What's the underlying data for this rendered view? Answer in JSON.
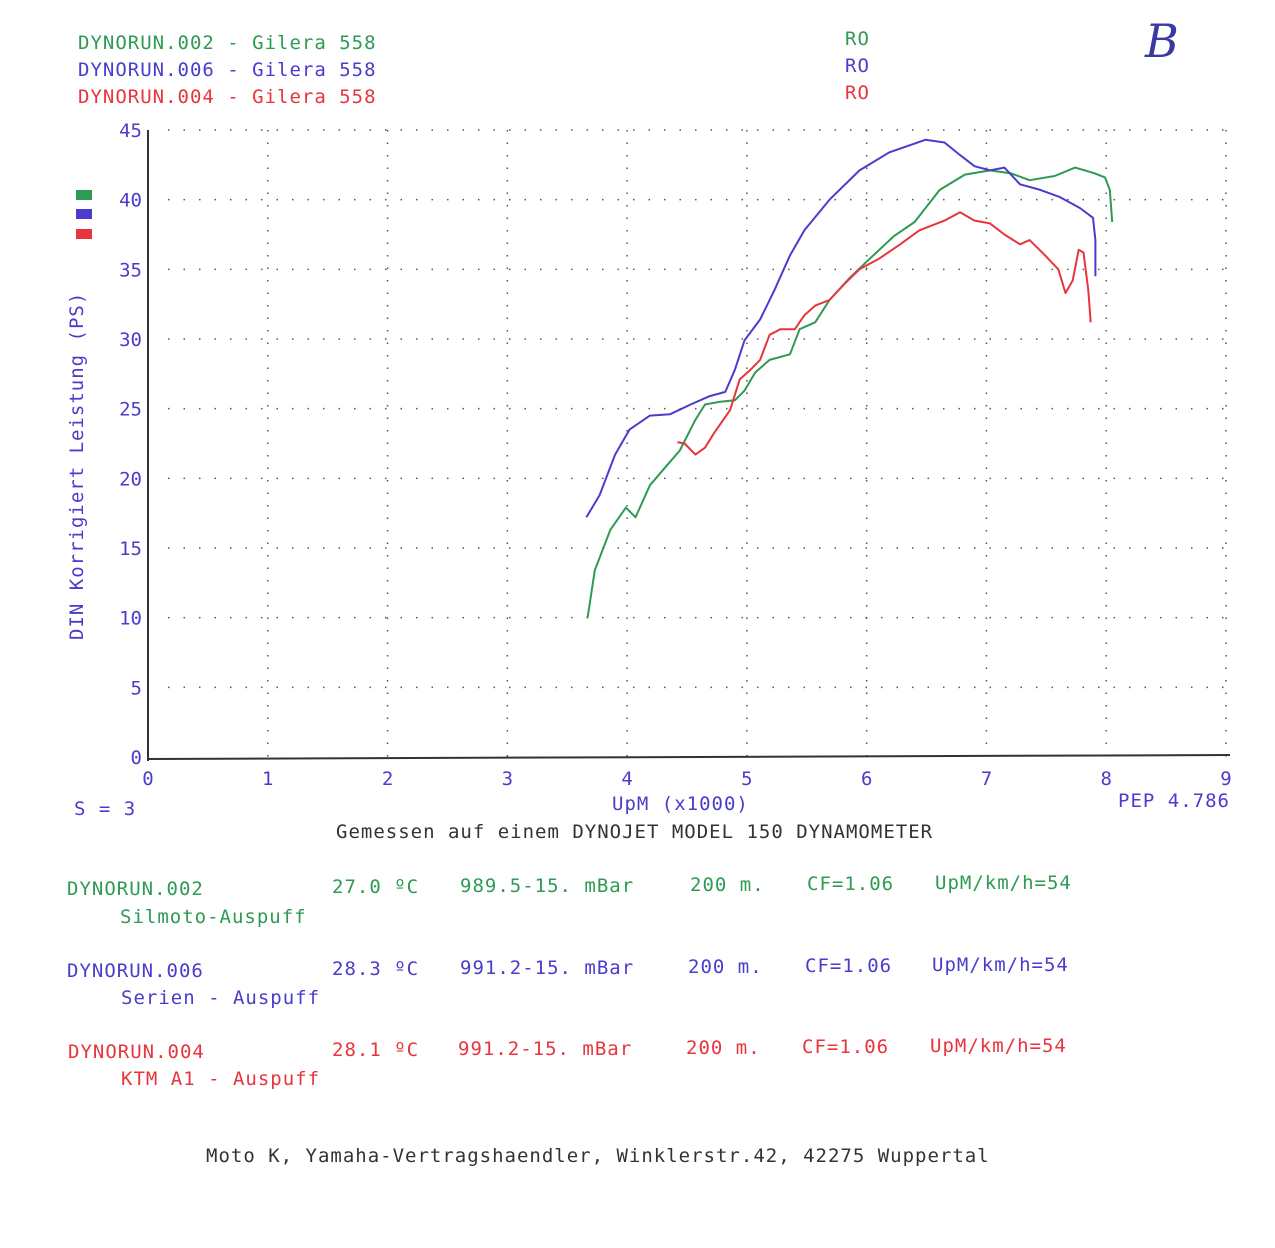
{
  "header": {
    "runs": [
      {
        "label": "DYNORUN.002 - Gilera 558",
        "tag": "RO",
        "color": "#2e9a52"
      },
      {
        "label": "DYNORUN.006 - Gilera 558",
        "tag": "RO",
        "color": "#4a3ccc"
      },
      {
        "label": "DYNORUN.004 - Gilera 558",
        "tag": "RO",
        "color": "#e8343c"
      }
    ],
    "handwritten_mark": "B"
  },
  "smoothing": "S = 3",
  "pep": "PEP 4.786",
  "caption": "Gemessen auf einem DYNOJET MODEL 150 DYNAMOMETER",
  "runs_info": [
    {
      "run": "DYNORUN.002",
      "temp": "27.0 ºC",
      "pressure": "989.5-15. mBar",
      "altitude": "200 m.",
      "cf": "CF=1.06",
      "ratio": "UpM/km/h=54",
      "note": "Silmoto-Auspuff"
    },
    {
      "run": "DYNORUN.006",
      "temp": "28.3 ºC",
      "pressure": "991.2-15. mBar",
      "altitude": "200 m.",
      "cf": "CF=1.06",
      "ratio": "UpM/km/h=54",
      "note": "Serien - Auspuff"
    },
    {
      "run": "DYNORUN.004",
      "temp": "28.1 ºC",
      "pressure": "991.2-15. mBar",
      "altitude": "200 m.",
      "cf": "CF=1.06",
      "ratio": "UpM/km/h=54",
      "note": "KTM A1 - Auspuff"
    }
  ],
  "footer": "Moto K, Yamaha-Vertragshaendler, Winklerstr.42, 42275 Wuppertal",
  "chart_data": {
    "type": "line",
    "title": "",
    "xlabel": "UpM (x1000)",
    "ylabel": "DIN Korrigiert Leistung (PS)",
    "xlim": [
      0,
      9
    ],
    "ylim": [
      0,
      45
    ],
    "xticks": [
      "0",
      "1",
      "2",
      "3",
      "4",
      "5",
      "6",
      "7",
      "8",
      "9"
    ],
    "yticks": [
      "0",
      "5",
      "10",
      "15",
      "20",
      "25",
      "30",
      "35",
      "40",
      "45"
    ],
    "grid": "dotted",
    "legend": "left swatches",
    "series": [
      {
        "name": "DYNORUN.002",
        "color": "#2e9a52",
        "x": [
          3.67,
          3.73,
          3.86,
          3.99,
          4.07,
          4.19,
          4.32,
          4.44,
          4.57,
          4.65,
          4.78,
          4.9,
          4.98,
          5.07,
          5.19,
          5.36,
          5.44,
          5.57,
          5.69,
          5.86,
          6.03,
          6.23,
          6.4,
          6.61,
          6.82,
          7.03,
          7.2,
          7.36,
          7.57,
          7.74,
          7.9,
          7.99,
          8.03,
          8.05
        ],
        "y": [
          10.0,
          13.4,
          16.3,
          17.9,
          17.2,
          19.5,
          20.8,
          22.0,
          24.2,
          25.3,
          25.5,
          25.6,
          26.3,
          27.6,
          28.5,
          28.9,
          30.7,
          31.2,
          32.8,
          34.4,
          35.8,
          37.4,
          38.4,
          40.7,
          41.8,
          42.1,
          41.9,
          41.4,
          41.7,
          42.3,
          41.9,
          41.6,
          40.7,
          38.4
        ]
      },
      {
        "name": "DYNORUN.006",
        "color": "#4a3ccc",
        "x": [
          3.66,
          3.77,
          3.9,
          4.02,
          4.19,
          4.36,
          4.53,
          4.69,
          4.82,
          4.9,
          4.98,
          5.11,
          5.23,
          5.36,
          5.48,
          5.69,
          5.94,
          6.19,
          6.49,
          6.65,
          6.78,
          6.9,
          7.03,
          7.15,
          7.28,
          7.45,
          7.61,
          7.78,
          7.89,
          7.91,
          7.91
        ],
        "y": [
          17.2,
          18.8,
          21.7,
          23.5,
          24.5,
          24.6,
          25.3,
          25.9,
          26.2,
          27.8,
          29.9,
          31.4,
          33.5,
          36.0,
          37.8,
          40.0,
          42.1,
          43.4,
          44.3,
          44.1,
          43.2,
          42.4,
          42.1,
          42.3,
          41.1,
          40.7,
          40.2,
          39.4,
          38.7,
          37.1,
          34.5
        ]
      },
      {
        "name": "DYNORUN.004",
        "color": "#e8343c",
        "x": [
          4.42,
          4.48,
          4.57,
          4.65,
          4.73,
          4.86,
          4.94,
          5.03,
          5.11,
          5.19,
          5.28,
          5.4,
          5.48,
          5.57,
          5.69,
          5.82,
          5.94,
          6.11,
          6.28,
          6.44,
          6.65,
          6.78,
          6.9,
          7.03,
          7.15,
          7.28,
          7.36,
          7.49,
          7.6,
          7.66,
          7.72,
          7.77,
          7.81,
          7.85,
          7.87
        ],
        "y": [
          22.6,
          22.5,
          21.7,
          22.2,
          23.3,
          24.9,
          27.1,
          27.8,
          28.5,
          30.3,
          30.7,
          30.7,
          31.7,
          32.4,
          32.8,
          34.0,
          35.0,
          35.8,
          36.8,
          37.8,
          38.5,
          39.1,
          38.5,
          38.3,
          37.5,
          36.8,
          37.1,
          36.0,
          35.0,
          33.3,
          34.2,
          36.4,
          36.2,
          33.5,
          31.2
        ]
      }
    ]
  }
}
